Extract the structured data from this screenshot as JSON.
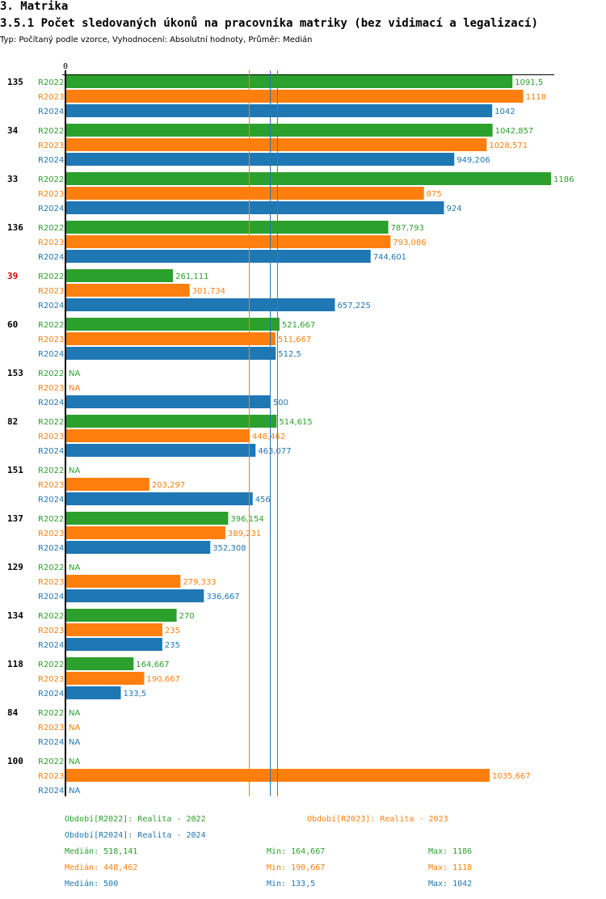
{
  "header": {
    "section": "3. Matrika",
    "title": "3.5.1 Počet sledovaných úkonů na pracovníka matriky (bez vidimací a legalizací)",
    "subtitle": "Typ: Počítaný podle vzorce, Vyhodnocení: Absolutní hodnoty, Průměr: Medián"
  },
  "colors": {
    "R2022": "#2ca02c",
    "R2023": "#ff7f0e",
    "R2024": "#1f77b4",
    "highlight": "#e00000"
  },
  "chart_data": {
    "type": "bar",
    "orientation": "horizontal",
    "title": "3.5.1 Počet sledovaných úkonů na pracovníka matriky (bez vidimací a legalizací)",
    "xlabel": "",
    "ylabel": "",
    "x_tick_labels": [
      "0"
    ],
    "xlim": [
      0,
      1186
    ],
    "categories": [
      "135",
      "34",
      "33",
      "136",
      "39",
      "60",
      "153",
      "82",
      "151",
      "137",
      "129",
      "134",
      "118",
      "84",
      "100"
    ],
    "highlighted_category": "39",
    "series": [
      {
        "name": "R2022",
        "values": [
          1091.5,
          1042.857,
          1186,
          787.793,
          261.111,
          521.667,
          null,
          514.615,
          null,
          396.154,
          null,
          270,
          164.667,
          null,
          null
        ],
        "labels": [
          "1091,5",
          "1042,857",
          "1186",
          "787,793",
          "261,111",
          "521,667",
          "NA",
          "514,615",
          "NA",
          "396,154",
          "NA",
          "270",
          "164,667",
          "NA",
          "NA"
        ]
      },
      {
        "name": "R2023",
        "values": [
          1118,
          1028.571,
          875,
          793.086,
          301.734,
          511.667,
          null,
          448.462,
          203.297,
          389.231,
          279.333,
          235,
          190.667,
          null,
          1035.667
        ],
        "labels": [
          "1118",
          "1028,571",
          "875",
          "793,086",
          "301,734",
          "511,667",
          "NA",
          "448,462",
          "203,297",
          "389,231",
          "279,333",
          "235",
          "190,667",
          "NA",
          "1035,667"
        ]
      },
      {
        "name": "R2024",
        "values": [
          1042,
          949.206,
          924,
          744.601,
          657.225,
          512.5,
          500,
          463.077,
          456,
          352.308,
          336.667,
          235,
          133.5,
          null,
          null
        ],
        "labels": [
          "1042",
          "949,206",
          "924",
          "744,601",
          "657,225",
          "512,5",
          "500",
          "463,077",
          "456",
          "352,308",
          "336,667",
          "235",
          "133,5",
          "NA",
          "NA"
        ]
      }
    ],
    "median_lines": [
      {
        "series": "R2022",
        "value": 518.141
      },
      {
        "series": "R2023",
        "value": 448.462
      },
      {
        "series": "R2024",
        "value": 500
      }
    ],
    "legend": [
      {
        "series": "R2022",
        "label": "Období[R2022]: Realita - 2022"
      },
      {
        "series": "R2023",
        "label": "Období[R2023]: Realita - 2023"
      },
      {
        "series": "R2024",
        "label": "Období[R2024]: Realita - 2024"
      }
    ],
    "stats": [
      {
        "series": "R2022",
        "median": "Medián: 518,141",
        "min": "Min: 164,667",
        "max": "Max: 1186"
      },
      {
        "series": "R2023",
        "median": "Medián: 448,462",
        "min": "Min: 190,667",
        "max": "Max: 1118"
      },
      {
        "series": "R2024",
        "median": "Medián: 500",
        "min": "Min: 133,5",
        "max": "Max: 1042"
      }
    ],
    "legend_position": "bottom",
    "grid": false
  }
}
